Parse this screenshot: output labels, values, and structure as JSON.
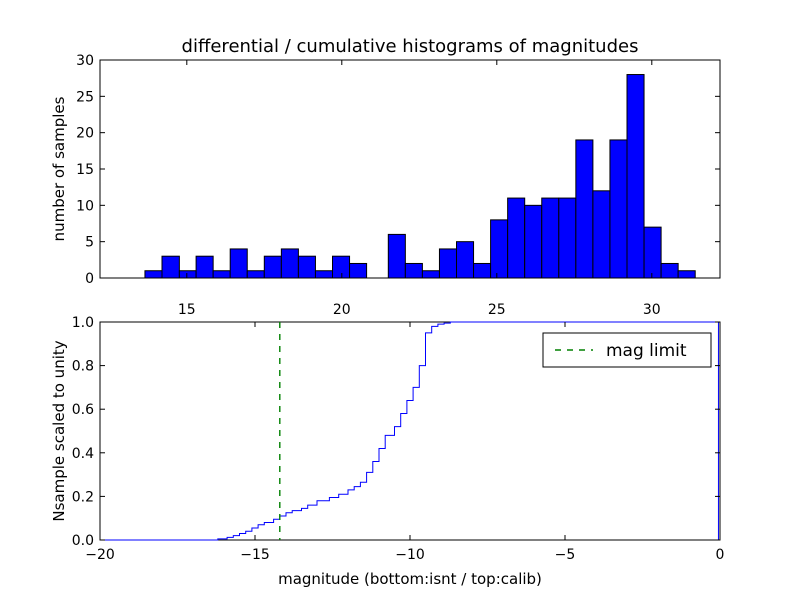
{
  "chart_data": [
    {
      "type": "bar",
      "title": "differential / cumulative histograms of magnitudes",
      "xlabel": "",
      "ylabel": "number of samples",
      "xlim": [
        12.2,
        32.2
      ],
      "ylim": [
        0,
        30
      ],
      "xticks": [
        15,
        20,
        25,
        30
      ],
      "xtick_labels": [
        "15",
        "20",
        "25",
        "30"
      ],
      "yticks": [
        0,
        5,
        10,
        15,
        20,
        25,
        30
      ],
      "ytick_labels": [
        "0",
        "5",
        "10",
        "15",
        "20",
        "25",
        "30"
      ],
      "bar_color": "#0000ff",
      "edge_color": "#000000",
      "bins": [
        {
          "x0": 13.65,
          "x1": 14.2,
          "count": 1
        },
        {
          "x0": 14.2,
          "x1": 14.76,
          "count": 3
        },
        {
          "x0": 14.76,
          "x1": 15.3,
          "count": 1
        },
        {
          "x0": 15.3,
          "x1": 15.85,
          "count": 3
        },
        {
          "x0": 15.85,
          "x1": 16.4,
          "count": 1
        },
        {
          "x0": 16.4,
          "x1": 16.95,
          "count": 4
        },
        {
          "x0": 16.95,
          "x1": 17.5,
          "count": 1
        },
        {
          "x0": 17.5,
          "x1": 18.05,
          "count": 3
        },
        {
          "x0": 18.05,
          "x1": 18.6,
          "count": 4
        },
        {
          "x0": 18.6,
          "x1": 19.15,
          "count": 3
        },
        {
          "x0": 19.15,
          "x1": 19.7,
          "count": 1
        },
        {
          "x0": 19.7,
          "x1": 20.25,
          "count": 3
        },
        {
          "x0": 20.25,
          "x1": 20.8,
          "count": 2
        },
        {
          "x0": 21.5,
          "x1": 22.05,
          "count": 6
        },
        {
          "x0": 22.05,
          "x1": 22.6,
          "count": 2
        },
        {
          "x0": 22.6,
          "x1": 23.15,
          "count": 1
        },
        {
          "x0": 23.15,
          "x1": 23.7,
          "count": 4
        },
        {
          "x0": 23.7,
          "x1": 24.25,
          "count": 5
        },
        {
          "x0": 24.25,
          "x1": 24.8,
          "count": 2
        },
        {
          "x0": 24.8,
          "x1": 25.35,
          "count": 8
        },
        {
          "x0": 25.35,
          "x1": 25.9,
          "count": 11
        },
        {
          "x0": 25.9,
          "x1": 26.45,
          "count": 10
        },
        {
          "x0": 26.45,
          "x1": 27.0,
          "count": 11
        },
        {
          "x0": 27.0,
          "x1": 27.55,
          "count": 11
        },
        {
          "x0": 27.55,
          "x1": 28.1,
          "count": 19
        },
        {
          "x0": 28.1,
          "x1": 28.65,
          "count": 12
        },
        {
          "x0": 28.65,
          "x1": 29.2,
          "count": 19
        },
        {
          "x0": 29.2,
          "x1": 29.75,
          "count": 28
        },
        {
          "x0": 29.75,
          "x1": 30.3,
          "count": 7
        },
        {
          "x0": 30.3,
          "x1": 30.85,
          "count": 2
        },
        {
          "x0": 30.85,
          "x1": 31.4,
          "count": 1
        }
      ]
    },
    {
      "type": "line",
      "title": "",
      "xlabel": "magnitude (bottom:isnt / top:calib)",
      "ylabel": "Nsample scaled to unity",
      "xlim": [
        -20,
        0
      ],
      "ylim": [
        0,
        1
      ],
      "xticks": [
        -20,
        -15,
        -10,
        -5,
        0
      ],
      "xtick_labels": [
        "−20",
        "−15",
        "−10",
        "−5",
        "0"
      ],
      "yticks": [
        0,
        0.2,
        0.4,
        0.6,
        0.8,
        1.0
      ],
      "ytick_labels": [
        "0.0",
        "0.2",
        "0.4",
        "0.6",
        "0.8",
        "1.0"
      ],
      "series": [
        {
          "kind": "step",
          "color": "#0000ff",
          "x": [
            -20,
            -16.2,
            -16.2,
            -15.9,
            -15.9,
            -15.7,
            -15.7,
            -15.5,
            -15.5,
            -15.3,
            -15.3,
            -15.1,
            -15.1,
            -14.9,
            -14.9,
            -14.7,
            -14.7,
            -14.4,
            -14.4,
            -14.2,
            -14.2,
            -14.0,
            -14.0,
            -13.8,
            -13.8,
            -13.5,
            -13.5,
            -13.3,
            -13.3,
            -13.0,
            -13.0,
            -12.6,
            -12.6,
            -12.3,
            -12.3,
            -12.0,
            -12.0,
            -11.8,
            -11.8,
            -11.6,
            -11.6,
            -11.4,
            -11.4,
            -11.2,
            -11.2,
            -11.0,
            -11.0,
            -10.8,
            -10.8,
            -10.5,
            -10.5,
            -10.3,
            -10.3,
            -10.1,
            -10.1,
            -9.9,
            -9.9,
            -9.7,
            -9.7,
            -9.5,
            -9.5,
            -9.3,
            -9.3,
            -9.1,
            -9.1,
            -8.9,
            -8.9,
            -8.7,
            -8.7,
            -8.5,
            -8.5,
            -0.05,
            -0.05
          ],
          "y": [
            0,
            0,
            0.005,
            0.005,
            0.012,
            0.012,
            0.02,
            0.02,
            0.03,
            0.03,
            0.04,
            0.04,
            0.055,
            0.055,
            0.07,
            0.07,
            0.08,
            0.08,
            0.095,
            0.095,
            0.11,
            0.11,
            0.125,
            0.125,
            0.135,
            0.135,
            0.145,
            0.145,
            0.16,
            0.16,
            0.18,
            0.18,
            0.195,
            0.195,
            0.21,
            0.21,
            0.23,
            0.23,
            0.245,
            0.245,
            0.265,
            0.265,
            0.31,
            0.31,
            0.36,
            0.36,
            0.42,
            0.42,
            0.48,
            0.48,
            0.52,
            0.52,
            0.58,
            0.58,
            0.64,
            0.64,
            0.7,
            0.7,
            0.8,
            0.8,
            0.95,
            0.95,
            0.98,
            0.98,
            0.99,
            0.99,
            0.995,
            0.995,
            1.0,
            1.0,
            1.0,
            1.0,
            0
          ]
        },
        {
          "name": "mag limit",
          "kind": "vline",
          "color": "#008000",
          "style": "dashed",
          "x": -14.2
        }
      ],
      "legend": {
        "placement": "top-right",
        "entries": [
          "mag limit"
        ]
      }
    }
  ]
}
